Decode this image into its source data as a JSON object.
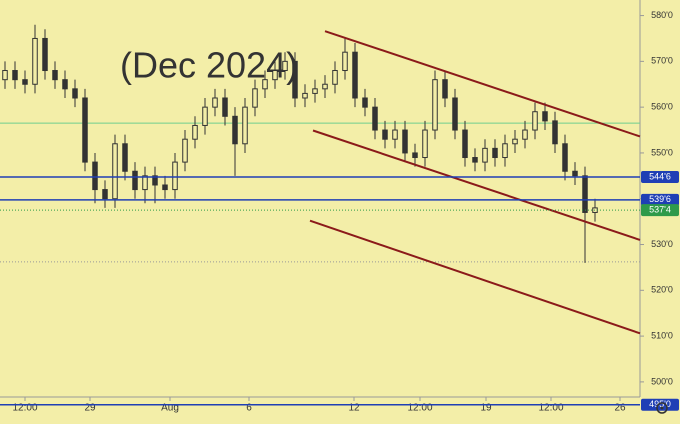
{
  "chart_data": {
    "type": "candlestick",
    "watermark": "(Dec 2024)",
    "background": "#f3eea8",
    "xlim": [
      0,
      64
    ],
    "xticks": [
      {
        "value": 2.5,
        "label": "12:00"
      },
      {
        "value": 9,
        "label": "29"
      },
      {
        "value": 17,
        "label": "Aug"
      },
      {
        "value": 24.9,
        "label": "6"
      },
      {
        "value": 35.4,
        "label": "12"
      },
      {
        "value": 42,
        "label": "12:00"
      },
      {
        "value": 48.6,
        "label": "19"
      },
      {
        "value": 55.1,
        "label": "12:00"
      },
      {
        "value": 62,
        "label": "26"
      }
    ],
    "ylim": [
      496.7,
      583.4
    ],
    "yticks": [
      {
        "value": 500,
        "label": "500'0"
      },
      {
        "value": 510,
        "label": "510'0"
      },
      {
        "value": 520,
        "label": "520'0"
      },
      {
        "value": 530,
        "label": "530'0"
      },
      {
        "value": 540,
        "label": "540'0"
      },
      {
        "value": 550,
        "label": "550'0"
      },
      {
        "value": 560,
        "label": "560'0"
      },
      {
        "value": 570,
        "label": "570'0"
      },
      {
        "value": 580,
        "label": "580'0"
      }
    ],
    "candle_color": "#333333",
    "open": [
      566,
      568,
      566,
      565,
      575,
      568,
      566,
      564,
      562,
      548,
      542,
      540,
      552,
      546,
      542,
      545,
      543,
      542,
      548,
      553,
      556,
      560,
      562,
      558,
      552,
      560,
      564,
      566,
      568,
      570,
      562,
      563,
      564,
      565,
      568,
      572,
      562,
      560,
      555,
      553,
      555,
      550,
      549,
      555,
      566,
      562,
      555,
      549,
      548,
      551,
      549,
      552,
      553,
      555,
      559,
      557,
      552,
      546,
      545,
      537
    ],
    "high": [
      570,
      570,
      568,
      578,
      577,
      570,
      568,
      566,
      564,
      550,
      544,
      554,
      554,
      548,
      547,
      547,
      545,
      550,
      555,
      558,
      562,
      564,
      564,
      560,
      562,
      566,
      568,
      570,
      572,
      572,
      565,
      566,
      567,
      570,
      575,
      574,
      564,
      562,
      557,
      557,
      557,
      552,
      557,
      568,
      568,
      564,
      557,
      551,
      553,
      553,
      554,
      555,
      557,
      561,
      561,
      559,
      554,
      548,
      547,
      540
    ],
    "low": [
      564,
      564,
      563,
      563,
      566,
      564,
      562,
      560,
      546,
      539,
      538,
      538,
      544,
      540,
      539,
      539,
      540,
      540,
      546,
      551,
      554,
      558,
      556,
      545,
      550,
      558,
      562,
      564,
      566,
      560,
      560,
      561,
      562,
      563,
      566,
      560,
      558,
      553,
      551,
      551,
      548,
      547,
      547,
      553,
      560,
      553,
      547,
      546,
      546,
      547,
      547,
      550,
      551,
      553,
      555,
      550,
      544,
      543,
      526,
      535
    ],
    "close": [
      568,
      566,
      565,
      575,
      568,
      566,
      564,
      562,
      548,
      542,
      540,
      552,
      546,
      542,
      545,
      543,
      542,
      548,
      553,
      556,
      560,
      562,
      558,
      552,
      560,
      564,
      566,
      568,
      570,
      562,
      563,
      564,
      565,
      568,
      572,
      562,
      560,
      555,
      553,
      555,
      550,
      549,
      555,
      566,
      562,
      555,
      549,
      548,
      551,
      549,
      552,
      553,
      555,
      559,
      557,
      552,
      546,
      545,
      537,
      538
    ],
    "hlines": [
      {
        "value": 544.75,
        "label": "544'6",
        "color": "#1f3fb5",
        "style": "solid"
      },
      {
        "value": 539.75,
        "label": "539'6",
        "color": "#1f3fb5",
        "style": "solid"
      },
      {
        "value": 537.5,
        "label": "537'4",
        "color": "#2e9a4a",
        "style": "dotted"
      },
      {
        "value": 495,
        "label": "495'0",
        "color": "#1f3fb5",
        "style": "solid"
      }
    ],
    "guides": [
      {
        "value": 556.5,
        "color": "#6fcf8f"
      },
      {
        "value": 526.2,
        "color": "#999999"
      }
    ],
    "trendlines": [
      {
        "x": [
          32.5,
          64
        ],
        "y": [
          576.6,
          553.6
        ],
        "color": "#8b1a1a"
      },
      {
        "x": [
          31.3,
          64
        ],
        "y": [
          554.9,
          531.0
        ],
        "color": "#8b1a1a"
      },
      {
        "x": [
          31,
          64
        ],
        "y": [
          535.2,
          510.6
        ],
        "color": "#8b1a1a"
      }
    ]
  }
}
